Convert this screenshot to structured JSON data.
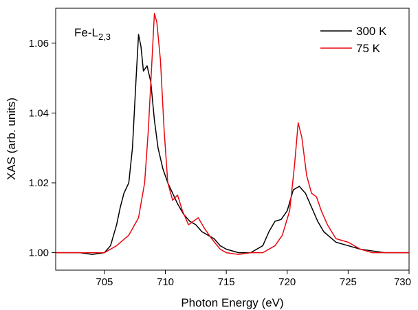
{
  "chart_data": {
    "type": "line",
    "title": "",
    "xlabel": "Photon Energy (eV)",
    "ylabel": "XAS (arb. units)",
    "xlim": [
      701,
      730
    ],
    "ylim": [
      0.995,
      1.07
    ],
    "x_ticks": [
      705,
      710,
      715,
      720,
      725,
      730
    ],
    "x_tick_labels": [
      "705",
      "710",
      "715",
      "720",
      "725",
      "730"
    ],
    "y_ticks": [
      1.0,
      1.02,
      1.04,
      1.06
    ],
    "y_tick_labels": [
      "1.00",
      "1.02",
      "1.04",
      "1.06"
    ],
    "annotation": {
      "base": "Fe-L",
      "subscript": "2,3"
    },
    "legend_position": "top-right",
    "grid": false,
    "series": [
      {
        "name": "300 K",
        "color": "#000000",
        "points": [
          [
            701.0,
            1.0
          ],
          [
            702.0,
            1.0
          ],
          [
            703.0,
            1.0
          ],
          [
            704.0,
            0.9995
          ],
          [
            705.0,
            1.0
          ],
          [
            705.5,
            1.002
          ],
          [
            706.0,
            1.008
          ],
          [
            706.3,
            1.013
          ],
          [
            706.6,
            1.017
          ],
          [
            707.0,
            1.02
          ],
          [
            707.3,
            1.03
          ],
          [
            707.6,
            1.05
          ],
          [
            707.8,
            1.0625
          ],
          [
            708.0,
            1.059
          ],
          [
            708.2,
            1.052
          ],
          [
            708.5,
            1.0535
          ],
          [
            708.8,
            1.049
          ],
          [
            709.1,
            1.038
          ],
          [
            709.4,
            1.03
          ],
          [
            709.8,
            1.024
          ],
          [
            710.2,
            1.02
          ],
          [
            710.6,
            1.017
          ],
          [
            711.0,
            1.014
          ],
          [
            711.5,
            1.011
          ],
          [
            712.0,
            1.009
          ],
          [
            712.5,
            1.008
          ],
          [
            713.0,
            1.006
          ],
          [
            713.5,
            1.005
          ],
          [
            714.0,
            1.004
          ],
          [
            714.5,
            1.002
          ],
          [
            715.0,
            1.001
          ],
          [
            716.0,
            1.0
          ],
          [
            717.0,
            1.0
          ],
          [
            718.0,
            1.002
          ],
          [
            718.5,
            1.006
          ],
          [
            719.0,
            1.009
          ],
          [
            719.5,
            1.0095
          ],
          [
            720.0,
            1.012
          ],
          [
            720.5,
            1.018
          ],
          [
            721.0,
            1.019
          ],
          [
            721.5,
            1.017
          ],
          [
            722.0,
            1.013
          ],
          [
            722.5,
            1.009
          ],
          [
            723.0,
            1.006
          ],
          [
            724.0,
            1.003
          ],
          [
            725.0,
            1.002
          ],
          [
            726.0,
            1.001
          ],
          [
            727.0,
            1.0005
          ],
          [
            728.0,
            1.0
          ],
          [
            729.0,
            1.0
          ],
          [
            730.0,
            1.0
          ]
        ]
      },
      {
        "name": "75 K",
        "color": "#e8070f",
        "points": [
          [
            701.0,
            1.0
          ],
          [
            702.0,
            1.0
          ],
          [
            703.0,
            1.0
          ],
          [
            704.0,
            1.0
          ],
          [
            705.0,
            1.0
          ],
          [
            706.0,
            1.002
          ],
          [
            707.0,
            1.005
          ],
          [
            707.8,
            1.01
          ],
          [
            708.3,
            1.02
          ],
          [
            708.6,
            1.035
          ],
          [
            708.9,
            1.055
          ],
          [
            709.1,
            1.0685
          ],
          [
            709.3,
            1.066
          ],
          [
            709.6,
            1.055
          ],
          [
            709.9,
            1.035
          ],
          [
            710.2,
            1.02
          ],
          [
            710.6,
            1.015
          ],
          [
            711.0,
            1.0165
          ],
          [
            711.4,
            1.012
          ],
          [
            711.9,
            1.008
          ],
          [
            712.3,
            1.009
          ],
          [
            712.7,
            1.01
          ],
          [
            713.2,
            1.007
          ],
          [
            713.8,
            1.004
          ],
          [
            714.5,
            1.001
          ],
          [
            715.0,
            1.0
          ],
          [
            716.0,
            0.9995
          ],
          [
            717.0,
            1.0
          ],
          [
            718.0,
            1.0
          ],
          [
            719.0,
            1.002
          ],
          [
            719.6,
            1.005
          ],
          [
            720.2,
            1.012
          ],
          [
            720.6,
            1.025
          ],
          [
            720.9,
            1.0372
          ],
          [
            721.2,
            1.033
          ],
          [
            721.6,
            1.022
          ],
          [
            722.0,
            1.017
          ],
          [
            722.4,
            1.016
          ],
          [
            722.8,
            1.012
          ],
          [
            723.3,
            1.008
          ],
          [
            724.0,
            1.004
          ],
          [
            725.0,
            1.003
          ],
          [
            726.0,
            1.001
          ],
          [
            727.0,
            1.0
          ],
          [
            728.0,
            1.0
          ],
          [
            729.0,
            1.0
          ],
          [
            730.0,
            1.0
          ]
        ]
      }
    ]
  }
}
